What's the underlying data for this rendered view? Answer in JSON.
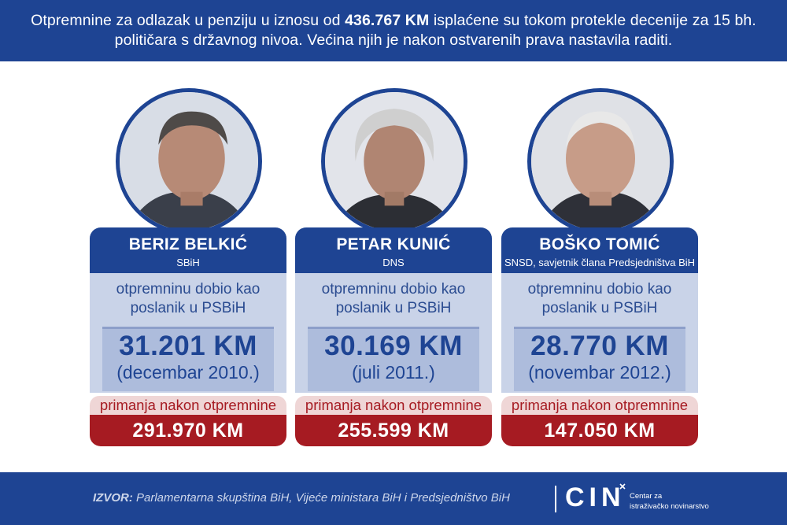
{
  "header": {
    "text_before": "Otpremnine za odlazak u penziju u iznosu od ",
    "text_highlight": "436.767 KM",
    "text_after": " isplaćene su tokom protekle decenije za 15 bh. političara s državnog nivoa. Većina njih je nakon ostvarenih prava nastavila raditi."
  },
  "cards": [
    {
      "name": "BERIZ BELKIĆ",
      "party": "SBiH",
      "description": "otpremninu dobio kao poslanik u PSBiH",
      "amount": "31.201 KM",
      "date": "(decembar 2010.)",
      "after_label": "primanja nakon otpremnine",
      "after_amount": "291.970 KM"
    },
    {
      "name": "PETAR KUNIĆ",
      "party": "DNS",
      "description": "otpremninu dobio kao poslanik u PSBiH",
      "amount": "30.169 KM",
      "date": "(juli 2011.)",
      "after_label": "primanja nakon otpremnine",
      "after_amount": "255.599 KM"
    },
    {
      "name": "BOŠKO TOMIĆ",
      "party": "SNSD, savjetnik člana Predsjedništva BiH",
      "description": "otpremninu dobio kao poslanik u PSBiH",
      "amount": "28.770 KM",
      "date": "(novembar 2012.)",
      "after_label": "primanja nakon otpremnine",
      "after_amount": "147.050 KM"
    }
  ],
  "footer": {
    "source_label": "IZVOR:",
    "source_text": " Parlamentarna skupština BiH, Vijeće ministara BiH i Predsjedništvo BiH",
    "logo": "CIN",
    "logo_sub_line1": "Centar za",
    "logo_sub_line2": "istraživačko novinarstvo"
  },
  "colors": {
    "primary_blue": "#1e4493",
    "light_blue": "#c9d3e8",
    "mid_blue": "#adbcdc",
    "dark_red": "#a61b22",
    "light_red": "#efd6d6"
  }
}
